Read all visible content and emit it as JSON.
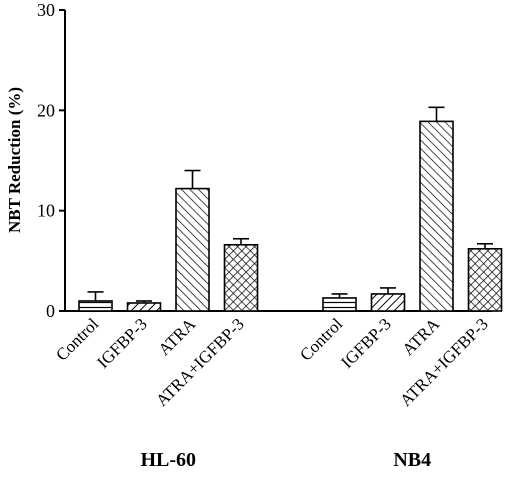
{
  "chart_data": {
    "type": "bar",
    "title": "",
    "xlabel": "",
    "ylabel": "NBT Reduction (%)",
    "ylim": [
      0,
      30
    ],
    "yticks": [
      0,
      10,
      20,
      30
    ],
    "grid": false,
    "groups": [
      {
        "name": "HL-60",
        "categories": [
          "Control",
          "IGFBP-3",
          "ATRA",
          "ATRA+IGFBP-3"
        ],
        "values": [
          1.0,
          0.8,
          12.2,
          6.6
        ],
        "errors": [
          0.9,
          0.2,
          1.8,
          0.6
        ]
      },
      {
        "name": "NB4",
        "categories": [
          "Control",
          "IGFBP-3",
          "ATRA",
          "ATRA+IGFBP-3"
        ],
        "values": [
          1.3,
          1.7,
          18.9,
          6.2
        ],
        "errors": [
          0.4,
          0.6,
          1.4,
          0.5
        ]
      }
    ],
    "patterns": [
      "horizontal-lines",
      "diagonal-up",
      "diagonal-down",
      "crosshatch"
    ]
  }
}
